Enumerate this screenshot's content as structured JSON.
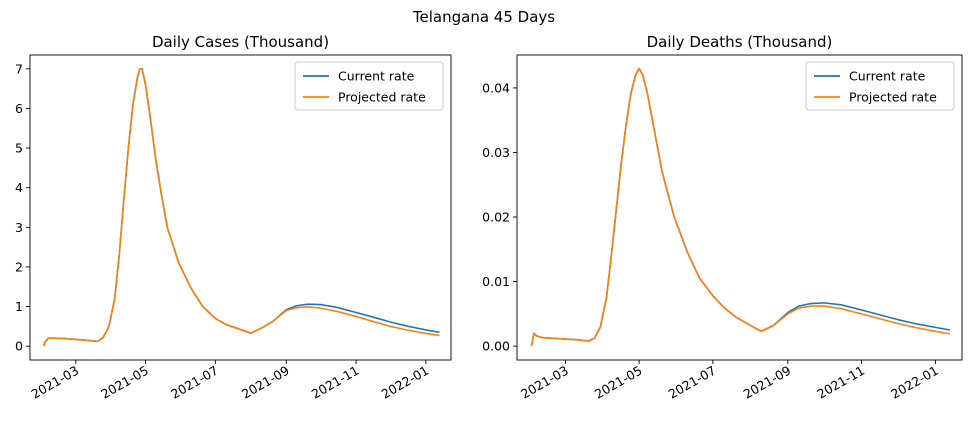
{
  "figure": {
    "suptitle": "Telangana 45 Days",
    "colors": {
      "current": "#1f77b4",
      "projected": "#ff7f0e"
    }
  },
  "chart_data": [
    {
      "type": "line",
      "title": "Daily Cases (Thousand)",
      "xlabel": "",
      "ylabel": "",
      "x_type": "date",
      "xlim": [
        "2021-01-20",
        "2022-01-23"
      ],
      "ylim": [
        -0.35,
        7.35
      ],
      "xticks": [
        "2021-03-01",
        "2021-05-01",
        "2021-07-01",
        "2021-09-01",
        "2021-11-01",
        "2022-01-01"
      ],
      "xtick_labels": [
        "2021-03",
        "2021-05",
        "2021-07",
        "2021-09",
        "2021-11",
        "2022-01"
      ],
      "yticks": [
        0,
        1,
        2,
        3,
        4,
        5,
        6,
        7
      ],
      "ytick_labels": [
        "0",
        "1",
        "2",
        "3",
        "4",
        "5",
        "6",
        "7"
      ],
      "legend": {
        "position": "top-right",
        "entries": [
          "Current rate",
          "Projected rate"
        ]
      },
      "grid": false,
      "series": [
        {
          "name": "Current rate",
          "x": [
            "2021-02-01",
            "2021-02-02",
            "2021-02-05",
            "2021-02-10",
            "2021-02-20",
            "2021-03-01",
            "2021-03-10",
            "2021-03-20",
            "2021-03-25",
            "2021-03-30",
            "2021-04-04",
            "2021-04-08",
            "2021-04-12",
            "2021-04-16",
            "2021-04-20",
            "2021-04-24",
            "2021-04-26",
            "2021-04-28",
            "2021-05-01",
            "2021-05-05",
            "2021-05-10",
            "2021-05-15",
            "2021-05-20",
            "2021-05-30",
            "2021-06-10",
            "2021-06-20",
            "2021-07-01",
            "2021-07-10",
            "2021-07-20",
            "2021-08-01",
            "2021-08-10",
            "2021-08-20",
            "2021-09-01",
            "2021-09-10",
            "2021-09-20",
            "2021-10-01",
            "2021-10-15",
            "2021-11-01",
            "2021-11-15",
            "2021-12-01",
            "2021-12-15",
            "2022-01-01",
            "2022-01-13"
          ],
          "y": [
            0.0,
            0.1,
            0.2,
            0.2,
            0.19,
            0.17,
            0.15,
            0.12,
            0.22,
            0.5,
            1.2,
            2.3,
            3.7,
            5.0,
            6.1,
            6.8,
            7.0,
            7.0,
            6.6,
            5.8,
            4.7,
            3.8,
            3.0,
            2.1,
            1.45,
            1.0,
            0.7,
            0.55,
            0.45,
            0.33,
            0.45,
            0.62,
            0.92,
            1.02,
            1.06,
            1.05,
            0.98,
            0.85,
            0.74,
            0.61,
            0.51,
            0.41,
            0.35
          ]
        },
        {
          "name": "Projected rate",
          "x": [
            "2021-02-01",
            "2021-02-02",
            "2021-02-05",
            "2021-02-10",
            "2021-02-20",
            "2021-03-01",
            "2021-03-10",
            "2021-03-20",
            "2021-03-25",
            "2021-03-30",
            "2021-04-04",
            "2021-04-08",
            "2021-04-12",
            "2021-04-16",
            "2021-04-20",
            "2021-04-24",
            "2021-04-26",
            "2021-04-28",
            "2021-05-01",
            "2021-05-05",
            "2021-05-10",
            "2021-05-15",
            "2021-05-20",
            "2021-05-30",
            "2021-06-10",
            "2021-06-20",
            "2021-07-01",
            "2021-07-10",
            "2021-07-20",
            "2021-08-01",
            "2021-08-10",
            "2021-08-20",
            "2021-09-01",
            "2021-09-10",
            "2021-09-20",
            "2021-10-01",
            "2021-10-15",
            "2021-11-01",
            "2021-11-15",
            "2021-12-01",
            "2021-12-15",
            "2022-01-01",
            "2022-01-13"
          ],
          "y": [
            0.0,
            0.1,
            0.2,
            0.2,
            0.19,
            0.17,
            0.15,
            0.12,
            0.22,
            0.5,
            1.2,
            2.3,
            3.7,
            5.0,
            6.1,
            6.8,
            7.0,
            7.0,
            6.6,
            5.8,
            4.7,
            3.8,
            3.0,
            2.1,
            1.45,
            1.0,
            0.7,
            0.55,
            0.45,
            0.33,
            0.45,
            0.62,
            0.9,
            0.97,
            0.99,
            0.96,
            0.88,
            0.75,
            0.63,
            0.5,
            0.41,
            0.32,
            0.27
          ]
        }
      ]
    },
    {
      "type": "line",
      "title": "Daily Deaths (Thousand)",
      "xlabel": "",
      "ylabel": "",
      "x_type": "date",
      "xlim": [
        "2021-01-20",
        "2022-01-23"
      ],
      "ylim": [
        -0.00215,
        0.0451
      ],
      "xticks": [
        "2021-03-01",
        "2021-05-01",
        "2021-07-01",
        "2021-09-01",
        "2021-11-01",
        "2022-01-01"
      ],
      "xtick_labels": [
        "2021-03",
        "2021-05",
        "2021-07",
        "2021-09",
        "2021-11",
        "2022-01"
      ],
      "yticks": [
        0.0,
        0.01,
        0.02,
        0.03,
        0.04
      ],
      "ytick_labels": [
        "0.00",
        "0.01",
        "0.02",
        "0.03",
        "0.04"
      ],
      "legend": {
        "position": "top-right",
        "entries": [
          "Current rate",
          "Projected rate"
        ]
      },
      "grid": false,
      "series": [
        {
          "name": "Current rate",
          "x": [
            "2021-02-01",
            "2021-02-03",
            "2021-02-05",
            "2021-02-10",
            "2021-02-20",
            "2021-03-01",
            "2021-03-10",
            "2021-03-20",
            "2021-03-25",
            "2021-03-30",
            "2021-04-04",
            "2021-04-08",
            "2021-04-12",
            "2021-04-16",
            "2021-04-20",
            "2021-04-24",
            "2021-04-28",
            "2021-05-01",
            "2021-05-04",
            "2021-05-08",
            "2021-05-12",
            "2021-05-16",
            "2021-05-20",
            "2021-05-30",
            "2021-06-10",
            "2021-06-20",
            "2021-07-01",
            "2021-07-10",
            "2021-07-20",
            "2021-08-01",
            "2021-08-10",
            "2021-08-20",
            "2021-09-01",
            "2021-09-10",
            "2021-09-20",
            "2021-10-01",
            "2021-10-15",
            "2021-11-01",
            "2021-11-15",
            "2021-12-01",
            "2021-12-15",
            "2022-01-01",
            "2022-01-13"
          ],
          "y": [
            0.0,
            0.002,
            0.0016,
            0.0013,
            0.0012,
            0.0011,
            0.001,
            0.0008,
            0.0012,
            0.003,
            0.0075,
            0.014,
            0.021,
            0.028,
            0.034,
            0.039,
            0.042,
            0.043,
            0.042,
            0.039,
            0.035,
            0.031,
            0.027,
            0.02,
            0.0145,
            0.0105,
            0.0078,
            0.006,
            0.0045,
            0.0032,
            0.0023,
            0.0032,
            0.0052,
            0.0062,
            0.0066,
            0.0067,
            0.0064,
            0.0056,
            0.0049,
            0.0041,
            0.0035,
            0.0029,
            0.0025
          ]
        },
        {
          "name": "Projected rate",
          "x": [
            "2021-02-01",
            "2021-02-03",
            "2021-02-05",
            "2021-02-10",
            "2021-02-20",
            "2021-03-01",
            "2021-03-10",
            "2021-03-20",
            "2021-03-25",
            "2021-03-30",
            "2021-04-04",
            "2021-04-08",
            "2021-04-12",
            "2021-04-16",
            "2021-04-20",
            "2021-04-24",
            "2021-04-28",
            "2021-05-01",
            "2021-05-04",
            "2021-05-08",
            "2021-05-12",
            "2021-05-16",
            "2021-05-20",
            "2021-05-30",
            "2021-06-10",
            "2021-06-20",
            "2021-07-01",
            "2021-07-10",
            "2021-07-20",
            "2021-08-01",
            "2021-08-10",
            "2021-08-20",
            "2021-09-01",
            "2021-09-10",
            "2021-09-20",
            "2021-10-01",
            "2021-10-15",
            "2021-11-01",
            "2021-11-15",
            "2021-12-01",
            "2021-12-15",
            "2022-01-01",
            "2022-01-13"
          ],
          "y": [
            0.0,
            0.002,
            0.0016,
            0.0013,
            0.0012,
            0.0011,
            0.001,
            0.0008,
            0.0012,
            0.003,
            0.0075,
            0.014,
            0.021,
            0.028,
            0.034,
            0.039,
            0.042,
            0.043,
            0.042,
            0.039,
            0.035,
            0.031,
            0.027,
            0.02,
            0.0145,
            0.0105,
            0.0078,
            0.006,
            0.0045,
            0.0032,
            0.0023,
            0.0032,
            0.005,
            0.0059,
            0.0062,
            0.0062,
            0.0058,
            0.005,
            0.0043,
            0.0035,
            0.0029,
            0.0023,
            0.0019
          ]
        }
      ]
    }
  ]
}
